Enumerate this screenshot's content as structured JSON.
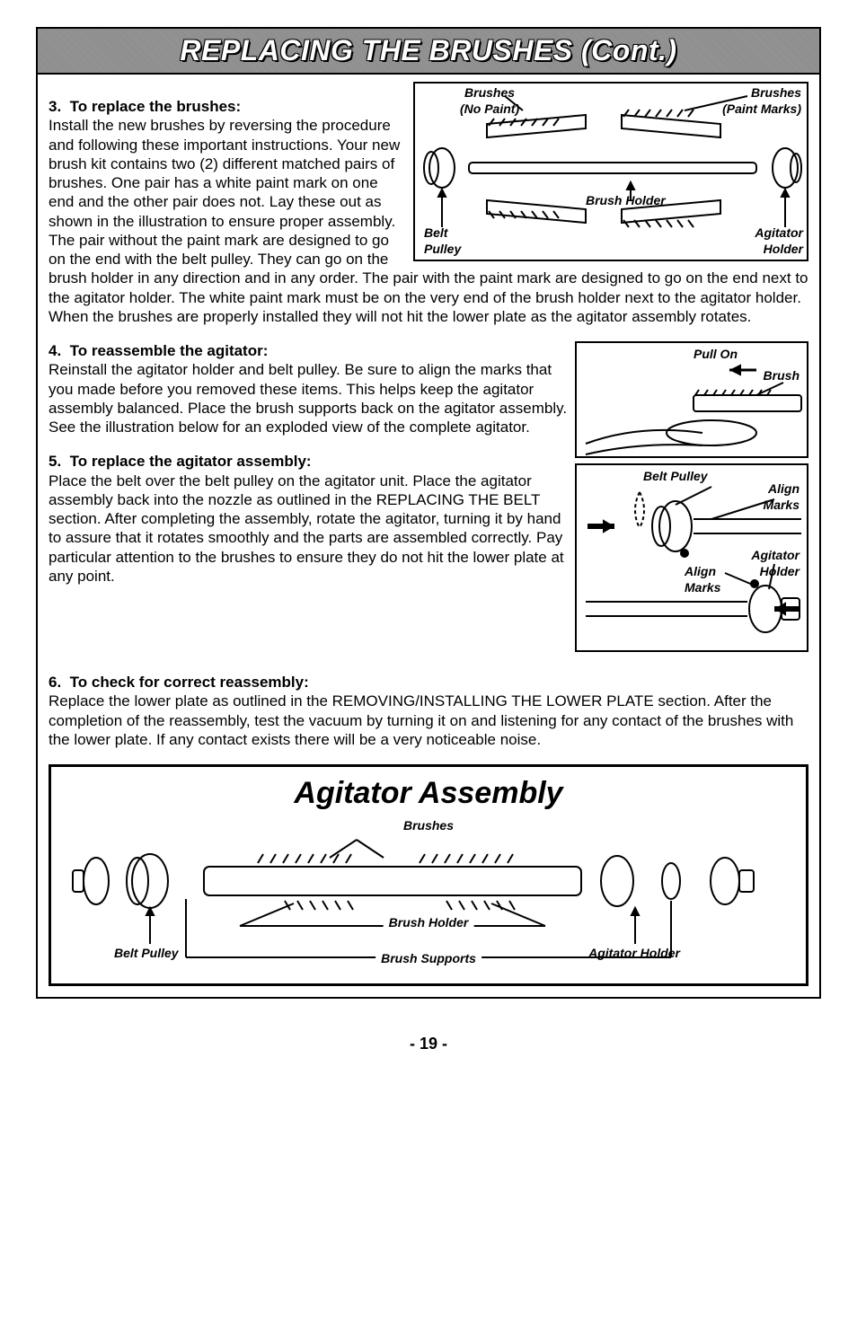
{
  "title": "REPLACING THE BRUSHES (Cont.)",
  "steps": {
    "s3": {
      "num": "3.",
      "head": "To replace the brushes:",
      "body": "Install the new brushes by reversing the procedure and following these important instructions. Your new brush kit contains two (2) different matched pairs of brushes. One pair has a white paint mark on one end and the other pair does not. Lay these out as shown in the illustration to ensure proper assembly. The pair without the paint mark are designed to go on the end with the belt pulley. They can go on the brush holder in any direction and in any order. The pair with the paint mark are designed to go on the end next to the agitator holder. The white paint mark must be on the very end of the brush holder next to the agitator holder. When the brushes are properly installed they will not hit the lower plate as the agitator assembly rotates."
    },
    "s4": {
      "num": "4.",
      "head": "To reassemble the agitator:",
      "body": "Reinstall the agitator holder and belt pulley. Be sure to align the marks that you made before you removed these items. This helps keep the agitator assembly balanced. Place the brush supports back on the agitator assembly. See the illustration below for an exploded view of the complete agitator."
    },
    "s5": {
      "num": "5.",
      "head": "To replace the agitator assembly:",
      "body": "Place the belt over the belt pulley on the agitator unit. Place the agitator assembly back into the nozzle as outlined in the REPLACING THE BELT section. After completing the assembly, rotate the agitator, turning it by hand to assure that it rotates smoothly and the parts are assembled correctly. Pay particular attention to the brushes to ensure they do not hit the lower plate at any point."
    },
    "s6": {
      "num": "6.",
      "head": "To check for correct reassembly:",
      "body": "Replace the lower plate as outlined in the REMOVING/INSTALLING THE LOWER PLATE section. After the completion of the reassembly, test the vacuum by turning it on and listening for any contact of the brushes with the lower plate. If any contact exists there will be a very noticeable noise."
    }
  },
  "fig1": {
    "brushes_no_paint": "Brushes\n(No Paint)",
    "brushes_paint": "Brushes\n(Paint Marks)",
    "brush_holder": "Brush Holder",
    "belt_pulley": "Belt\nPulley",
    "agitator_holder": "Agitator\nHolder"
  },
  "fig2": {
    "pull_on": "Pull On",
    "brush": "Brush"
  },
  "fig3": {
    "belt_pulley": "Belt Pulley",
    "align_marks1": "Align\nMarks",
    "align_marks2": "Align\nMarks",
    "agitator_holder": "Agitator\nHolder"
  },
  "assembly": {
    "title": "Agitator Assembly",
    "brushes": "Brushes",
    "brush_holder": "Brush Holder",
    "belt_pulley": "Belt Pulley",
    "agitator_holder": "Agitator Holder",
    "brush_supports": "Brush Supports"
  },
  "page_number": "- 19 -"
}
